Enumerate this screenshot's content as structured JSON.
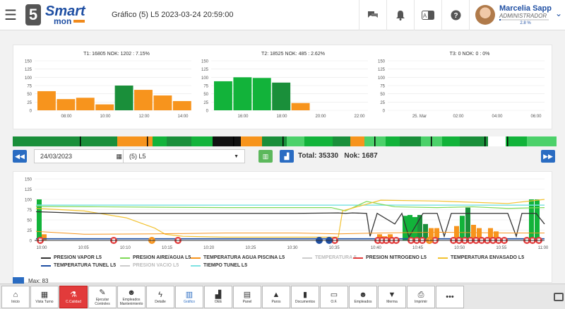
{
  "header": {
    "title": "Gráfico (5) L5 2023-03-24 20:59:00",
    "logo_number": "5",
    "logo_word1": "Smart",
    "logo_word2": "mon"
  },
  "user": {
    "name": "Marcelia Sapp",
    "role": "ADMINISTRADOR",
    "progress_label": "2.8 %",
    "progress": 0.028
  },
  "colors": {
    "ok": "#12b33a",
    "ok_light": "#4cd16a",
    "ok_dark": "#1a8f3a",
    "warn": "#f7941d",
    "black": "#111111",
    "accent": "#2a6cc2",
    "danger": "#e23b3b"
  },
  "turn_charts": [
    {
      "title": "T1: 16805 NOK: 1202 : 7.15%",
      "yticks": [
        "150",
        "125",
        "100",
        "75",
        "50",
        "25",
        "0"
      ],
      "xticks": [
        "08:00",
        "10:00",
        "12:00",
        "14:00"
      ],
      "bars": [
        {
          "value": 58,
          "color": "warn"
        },
        {
          "value": 34,
          "color": "warn"
        },
        {
          "value": 38,
          "color": "warn"
        },
        {
          "value": 18,
          "color": "warn"
        },
        {
          "value": 75,
          "color": "ok_dark"
        },
        {
          "value": 62,
          "color": "warn"
        },
        {
          "value": 45,
          "color": "warn"
        },
        {
          "value": 28,
          "color": "warn"
        }
      ]
    },
    {
      "title": "T2: 18525 NOK: 485 : 2.62%",
      "yticks": [
        "150",
        "125",
        "100",
        "75",
        "50",
        "25",
        "0"
      ],
      "xticks": [
        "16:00",
        "18:00",
        "20:00",
        "22:00"
      ],
      "bars": [
        {
          "value": 88,
          "color": "ok"
        },
        {
          "value": 100,
          "color": "ok"
        },
        {
          "value": 98,
          "color": "ok"
        },
        {
          "value": 84,
          "color": "ok_dark"
        },
        {
          "value": 22,
          "color": "warn"
        }
      ]
    },
    {
      "title": "T3: 0 NOK: 0 : 0%",
      "yticks": [
        "150",
        "125",
        "100",
        "75",
        "50",
        "25",
        "0"
      ],
      "xticks": [
        "25. Mar",
        "02:00",
        "04:00",
        "06:00"
      ],
      "bars": []
    }
  ],
  "controls": {
    "date_value": "24/03/2023",
    "line_value": "(5) L5",
    "total_label": "Total: 35330",
    "nok_label": "Nok: 1687"
  },
  "main_chart": {
    "yticks": [
      "150",
      "125",
      "100",
      "75",
      "50",
      "25",
      "0"
    ],
    "xticks": [
      "10:00",
      "10:05",
      "10:10",
      "10:15",
      "10:20",
      "10:25",
      "10:30",
      "10:35",
      "10:40",
      "10:45",
      "10:50",
      "10:55",
      "11:00"
    ]
  },
  "legend": [
    {
      "label": "PRESION VAPOR L5",
      "color": "#333333"
    },
    {
      "label": "PRESION AIRE/AGUA L5",
      "color": "#7ed957"
    },
    {
      "label": "TEMPERATURA AGUA PISCINA L5",
      "color": "#f7941d"
    },
    {
      "label": "TEMPERATURA 5",
      "color": "#cccccc",
      "muted": true
    },
    {
      "label": "PRESION NITROGENO L5",
      "color": "#e23b3b"
    },
    {
      "label": "TEMPERATURA ENVASADO L5",
      "color": "#f2c230"
    },
    {
      "label": "TEMPERATURA TUNEL L5",
      "color": "#1f4fa3"
    },
    {
      "label": "PRESION VACIO L5",
      "color": "#cccccc",
      "muted": true
    },
    {
      "label": "TIEMPO TUNEL L5",
      "color": "#7fe3e3"
    }
  ],
  "max_label": "Max: 83",
  "bottom_nav": [
    {
      "label": "Inicio",
      "icon": "home-icon",
      "glyph": "⌂"
    },
    {
      "label": "Vista Turno",
      "icon": "grid-icon",
      "glyph": "▦"
    },
    {
      "label": "C.Calidad",
      "icon": "flask-icon",
      "glyph": "⚗",
      "active": true
    },
    {
      "label": "Ejecutar Controles",
      "icon": "wand-icon",
      "glyph": "✎"
    },
    {
      "label": "Empleados Mantenimiento",
      "icon": "team-icon",
      "glyph": "☻"
    },
    {
      "label": "Detalle",
      "icon": "bolt-icon",
      "glyph": "ϟ"
    },
    {
      "label": "Gráfico",
      "icon": "bar-chart-icon",
      "glyph": "▥",
      "chart": true
    },
    {
      "label": "OEE",
      "icon": "signal-icon",
      "glyph": "▟"
    },
    {
      "label": "Panel",
      "icon": "document-icon",
      "glyph": "▤"
    },
    {
      "label": "Paros",
      "icon": "warning-icon",
      "glyph": "▲"
    },
    {
      "label": "Documentos",
      "icon": "book-icon",
      "glyph": "▮"
    },
    {
      "label": "O.F.",
      "icon": "folder-icon",
      "glyph": "▭"
    },
    {
      "label": "Empleados",
      "icon": "users-icon",
      "glyph": "☻"
    },
    {
      "label": "Merma",
      "icon": "trash-icon",
      "glyph": "▼"
    },
    {
      "label": "Imprimir",
      "icon": "print-icon",
      "glyph": "⎙"
    },
    {
      "label": "",
      "icon": "more-icon",
      "glyph": "•••"
    }
  ]
}
